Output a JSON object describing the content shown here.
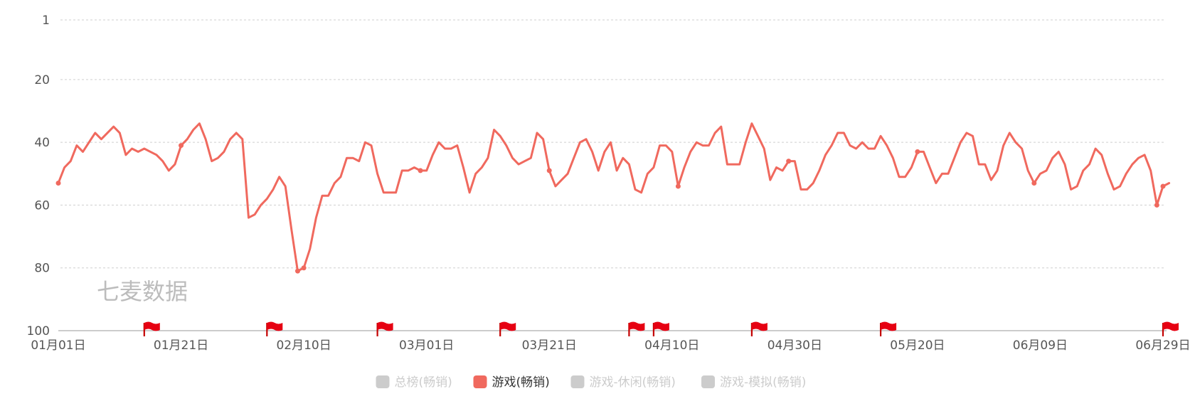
{
  "watermark": "七麦数据",
  "chart_data": {
    "type": "line",
    "y_inverted": true,
    "ylim": [
      1,
      100
    ],
    "yticks": [
      1,
      20,
      40,
      60,
      80,
      100
    ],
    "x_start": "01-01",
    "x_end": "06-29",
    "xtick_labels": [
      "01月01日",
      "01月21日",
      "02月10日",
      "03月01日",
      "03月21日",
      "04月10日",
      "04月30日",
      "05月20日",
      "06月09日",
      "06月29日"
    ],
    "grid": "horizontal-dashed",
    "legend_position": "bottom-center",
    "legend": [
      {
        "label": "总榜(畅销)",
        "active": false,
        "color": "#cccccc"
      },
      {
        "label": "游戏(畅销)",
        "active": true,
        "color": "#f0695e"
      },
      {
        "label": "游戏-休闲(畅销)",
        "active": false,
        "color": "#cccccc"
      },
      {
        "label": "游戏-模拟(畅销)",
        "active": false,
        "color": "#cccccc"
      }
    ],
    "series": [
      {
        "name": "游戏(畅销)",
        "color": "#f0695e",
        "values": [
          53,
          48,
          46,
          41,
          43,
          40,
          37,
          39,
          37,
          35,
          37,
          44,
          42,
          43,
          42,
          43,
          44,
          46,
          49,
          47,
          41,
          39,
          36,
          34,
          39,
          46,
          45,
          43,
          39,
          37,
          39,
          64,
          63,
          60,
          58,
          55,
          51,
          54,
          68,
          81,
          80,
          74,
          64,
          57,
          57,
          53,
          51,
          45,
          45,
          46,
          40,
          41,
          50,
          56,
          56,
          56,
          49,
          49,
          48,
          49,
          49,
          44,
          40,
          42,
          42,
          41,
          48,
          56,
          50,
          48,
          45,
          36,
          38,
          41,
          45,
          47,
          46,
          45,
          37,
          39,
          49,
          54,
          52,
          50,
          45,
          40,
          39,
          43,
          49,
          43,
          40,
          49,
          45,
          47,
          55,
          56,
          50,
          48,
          41,
          41,
          43,
          54,
          48,
          43,
          40,
          41,
          41,
          37,
          35,
          47,
          47,
          47,
          40,
          34,
          38,
          42,
          52,
          48,
          49,
          46,
          46,
          55,
          55,
          53,
          49,
          44,
          41,
          37,
          37,
          41,
          42,
          40,
          42,
          42,
          38,
          41,
          45,
          51,
          51,
          48,
          43,
          43,
          48,
          53,
          50,
          50,
          45,
          40,
          37,
          38,
          47,
          47,
          52,
          49,
          41,
          37,
          40,
          42,
          49,
          53,
          50,
          49,
          45,
          43,
          47,
          55,
          54,
          49,
          47,
          42,
          44,
          50,
          55,
          54,
          50,
          47,
          45,
          44,
          49,
          60,
          54,
          53
        ],
        "markers": [
          0,
          20,
          39,
          40,
          59,
          80,
          101,
          119,
          140,
          159,
          179,
          180
        ]
      }
    ],
    "flags": [
      "01-15",
      "02-04",
      "02-22",
      "03-13",
      "04-03",
      "04-07",
      "04-23",
      "05-14",
      "06-29"
    ]
  }
}
